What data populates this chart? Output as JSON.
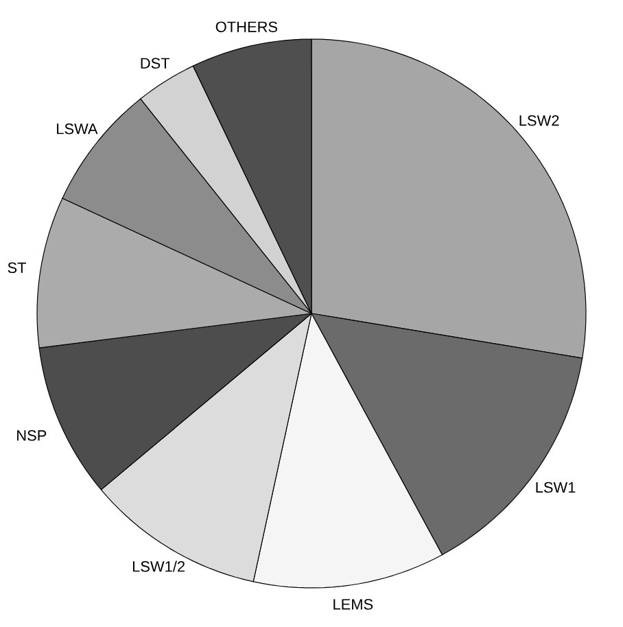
{
  "chart_data": {
    "type": "pie",
    "categories": [
      "LSW2",
      "LSW1",
      "LEMS",
      "LSW1/2",
      "NSP",
      "ST",
      "LSWA",
      "DST",
      "OTHERS"
    ],
    "values": [
      27.6,
      14.5,
      11.3,
      10.5,
      9.1,
      8.9,
      7.4,
      3.6,
      7.1
    ],
    "colors": [
      "#a6a6a6",
      "#6b6b6b",
      "#f5f5f5",
      "#dcdcdc",
      "#4d4d4d",
      "#ababab",
      "#8c8c8c",
      "#d2d2d2",
      "#4f4f4f"
    ]
  }
}
